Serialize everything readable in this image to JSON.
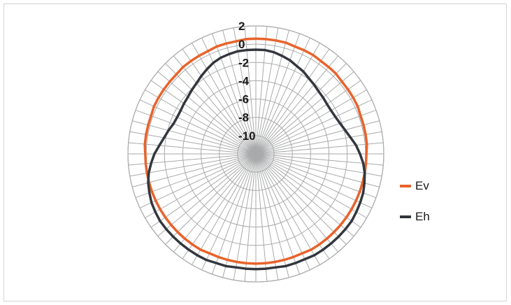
{
  "chart_data": {
    "type": "radar",
    "r_ticks": [
      2,
      0,
      -2,
      -4,
      -6,
      -8,
      -10
    ],
    "r_range": [
      -12,
      2
    ],
    "angular_divisions": 72,
    "grid": true,
    "legend_position": "right",
    "series": [
      {
        "name": "Ev",
        "color": "#e8632b",
        "values": [
          0.6,
          0.6,
          0.6,
          0.6,
          0.5,
          0.5,
          0.5,
          0.4,
          0.4,
          0.4,
          0.3,
          0.3,
          0.3,
          0.3,
          0.2,
          0.2,
          0.2,
          0.2,
          0.1,
          0.1,
          0.1,
          0.1,
          0.1,
          0.1,
          0.1,
          0.1,
          0.1,
          0.1,
          0.1,
          0.1,
          0.1,
          0.0,
          0.0,
          0.0,
          0.0,
          0.0,
          0.0,
          0.0,
          0.0,
          0.0,
          0.0,
          0.0,
          0.1,
          0.1,
          0.1,
          0.1,
          0.1,
          0.1,
          0.1,
          0.1,
          0.1,
          0.1,
          0.1,
          0.1,
          0.1,
          0.2,
          0.2,
          0.2,
          0.2,
          0.3,
          0.3,
          0.3,
          0.3,
          0.3,
          0.4,
          0.4,
          0.4,
          0.4,
          0.5,
          0.5,
          0.5,
          0.6
        ]
      },
      {
        "name": "Eh",
        "color": "#33373d",
        "values": [
          -0.6,
          -0.6,
          -0.7,
          -0.9,
          -1.1,
          -1.4,
          -1.6,
          -1.9,
          -2.1,
          -2.3,
          -2.4,
          -2.5,
          -2.5,
          -2.4,
          -2.2,
          -1.9,
          -1.5,
          -1.0,
          -0.6,
          -0.2,
          0.1,
          0.3,
          0.5,
          0.6,
          0.7,
          0.8,
          0.8,
          0.8,
          0.8,
          0.8,
          0.8,
          0.7,
          0.7,
          0.7,
          0.6,
          0.6,
          0.6,
          0.6,
          0.6,
          0.7,
          0.7,
          0.8,
          0.8,
          0.8,
          0.8,
          0.8,
          0.8,
          0.8,
          0.7,
          0.6,
          0.4,
          0.2,
          -0.1,
          -0.5,
          -0.9,
          -1.4,
          -1.8,
          -2.1,
          -2.4,
          -2.5,
          -2.5,
          -2.4,
          -2.3,
          -2.1,
          -1.9,
          -1.6,
          -1.3,
          -1.0,
          -0.8,
          -0.7,
          -0.6,
          -0.6
        ]
      }
    ]
  }
}
